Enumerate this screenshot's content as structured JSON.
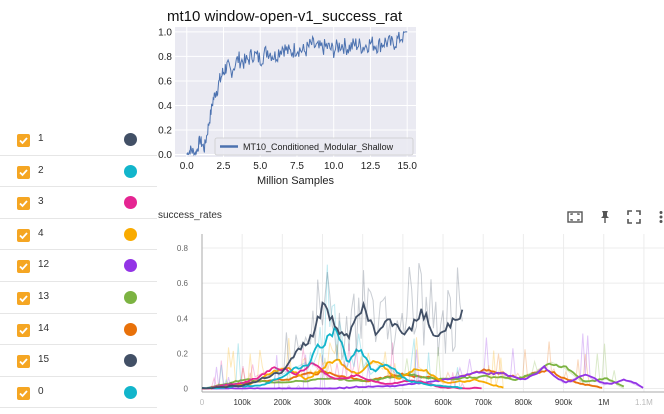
{
  "runs": [
    {
      "label": "1",
      "color": "#425066"
    },
    {
      "label": "2",
      "color": "#12b5cb"
    },
    {
      "label": "3",
      "color": "#e52592"
    },
    {
      "label": "4",
      "color": "#f9ab00"
    },
    {
      "label": "12",
      "color": "#9334e6"
    },
    {
      "label": "13",
      "color": "#7cb342"
    },
    {
      "label": "14",
      "color": "#e8710a"
    },
    {
      "label": "15",
      "color": "#425066"
    },
    {
      "label": "0",
      "color": "#12b5cb"
    }
  ],
  "mpl_figure": {
    "title": "mt10 window-open-v1_success_rat",
    "xlabel": "Million Samples",
    "legend_label": "MT10_Conditioned_Modular_Shallow",
    "x_ticks": [
      "0.0",
      "2.5",
      "5.0",
      "7.5",
      "10.0",
      "12.5",
      "15.0"
    ],
    "y_ticks": [
      "0.0",
      "0.2",
      "0.4",
      "0.6",
      "0.8",
      "1.0"
    ],
    "line_color": "#4c72b0"
  },
  "tb_card": {
    "title": "success_rates",
    "icons": [
      "fit-domain-icon",
      "pin-icon",
      "fullscreen-icon",
      "more-icon"
    ]
  },
  "chart_data": [
    {
      "type": "line",
      "title": "mt10 window-open-v1_success_rat",
      "xlabel": "Million Samples",
      "ylabel": "",
      "xlim": [
        -0.8,
        15.6
      ],
      "ylim": [
        -0.02,
        1.04
      ],
      "x_ticks": [
        0.0,
        2.5,
        5.0,
        7.5,
        10.0,
        12.5,
        15.0
      ],
      "y_ticks": [
        0.0,
        0.2,
        0.4,
        0.6,
        0.8,
        1.0
      ],
      "legend_position": "lower-right",
      "series": [
        {
          "name": "MT10_Conditioned_Modular_Shallow",
          "x": [
            0.0,
            0.3,
            0.6,
            0.9,
            1.2,
            1.5,
            1.8,
            2.1,
            2.4,
            2.7,
            3.0,
            3.5,
            4.0,
            4.5,
            5.0,
            5.5,
            6.0,
            6.5,
            7.0,
            7.5,
            8.0,
            8.5,
            9.0,
            9.5,
            10.0,
            10.5,
            11.0,
            11.5,
            12.0,
            12.5,
            13.0,
            13.5,
            14.0,
            14.5,
            15.0
          ],
          "y": [
            0.0,
            0.04,
            0.0,
            0.12,
            0.05,
            0.25,
            0.45,
            0.55,
            0.65,
            0.72,
            0.68,
            0.78,
            0.75,
            0.82,
            0.78,
            0.85,
            0.8,
            0.88,
            0.83,
            0.87,
            0.84,
            0.9,
            0.86,
            0.88,
            0.85,
            0.9,
            0.87,
            0.9,
            0.88,
            0.91,
            0.89,
            0.92,
            0.9,
            0.95,
            1.0
          ]
        }
      ]
    },
    {
      "type": "line",
      "title": "success_rates",
      "xlabel": "",
      "ylabel": "",
      "xlim": [
        0,
        1150000
      ],
      "ylim": [
        -0.02,
        0.88
      ],
      "x_ticks": [
        "0",
        "100k",
        "200k",
        "300k",
        "400k",
        "500k",
        "600k",
        "700k",
        "800k",
        "900k",
        "1M",
        "1.1M"
      ],
      "y_ticks": [
        "0",
        "0.2",
        "0.4",
        "0.6",
        "0.8"
      ],
      "series": [
        {
          "run": "1",
          "x": [
            0,
            100000,
            200000,
            250000,
            280000,
            300000,
            330000,
            360000,
            400000,
            430000,
            460000,
            500000,
            540000,
            580000,
            620000,
            650000
          ],
          "y": [
            0.0,
            0.02,
            0.1,
            0.25,
            0.35,
            0.5,
            0.35,
            0.3,
            0.48,
            0.3,
            0.4,
            0.28,
            0.45,
            0.3,
            0.38,
            0.48
          ]
        },
        {
          "run": "2",
          "x": [
            0,
            150000,
            200000,
            260000,
            300000,
            330000,
            360000,
            390000,
            420000,
            450000,
            500000,
            560000,
            650000
          ],
          "y": [
            0.0,
            0.02,
            0.08,
            0.15,
            0.28,
            0.35,
            0.12,
            0.25,
            0.08,
            0.15,
            0.05,
            0.02,
            0.0
          ]
        },
        {
          "run": "3",
          "x": [
            0,
            100000,
            180000,
            230000,
            270000,
            320000,
            380000,
            450000,
            520000,
            600000,
            700000
          ],
          "y": [
            0.0,
            0.03,
            0.12,
            0.08,
            0.15,
            0.05,
            0.08,
            0.02,
            0.05,
            0.0,
            0.0
          ]
        },
        {
          "run": "4",
          "x": [
            0,
            120000,
            200000,
            260000,
            320000,
            380000,
            430000,
            480000,
            540000,
            600000,
            680000,
            750000
          ],
          "y": [
            0.0,
            0.03,
            0.12,
            0.05,
            0.18,
            0.08,
            0.15,
            0.05,
            0.12,
            0.03,
            0.05,
            0.0
          ]
        },
        {
          "run": "12",
          "x": [
            0,
            300000,
            500000,
            600000,
            700000,
            800000,
            850000,
            900000,
            950000,
            1000000,
            1050000,
            1100000
          ],
          "y": [
            0.0,
            0.0,
            0.02,
            0.05,
            0.1,
            0.05,
            0.12,
            0.03,
            0.08,
            0.02,
            0.05,
            0.0
          ]
        },
        {
          "run": "13",
          "x": [
            0,
            100000,
            200000,
            300000,
            400000,
            500000,
            600000,
            700000,
            780000,
            830000,
            870000,
            900000,
            950000,
            1000000,
            1050000
          ],
          "y": [
            0.0,
            0.05,
            0.03,
            0.06,
            0.04,
            0.08,
            0.05,
            0.07,
            0.05,
            0.1,
            0.15,
            0.12,
            0.03,
            0.06,
            0.0
          ]
        },
        {
          "run": "14",
          "x": [
            0,
            100000,
            200000,
            300000,
            400000,
            500000,
            600000,
            700000,
            800000,
            850000,
            900000,
            950000,
            1000000
          ],
          "y": [
            0.0,
            0.03,
            0.05,
            0.1,
            0.04,
            0.08,
            0.05,
            0.1,
            0.06,
            0.12,
            0.05,
            0.02,
            0.0
          ]
        }
      ]
    }
  ]
}
